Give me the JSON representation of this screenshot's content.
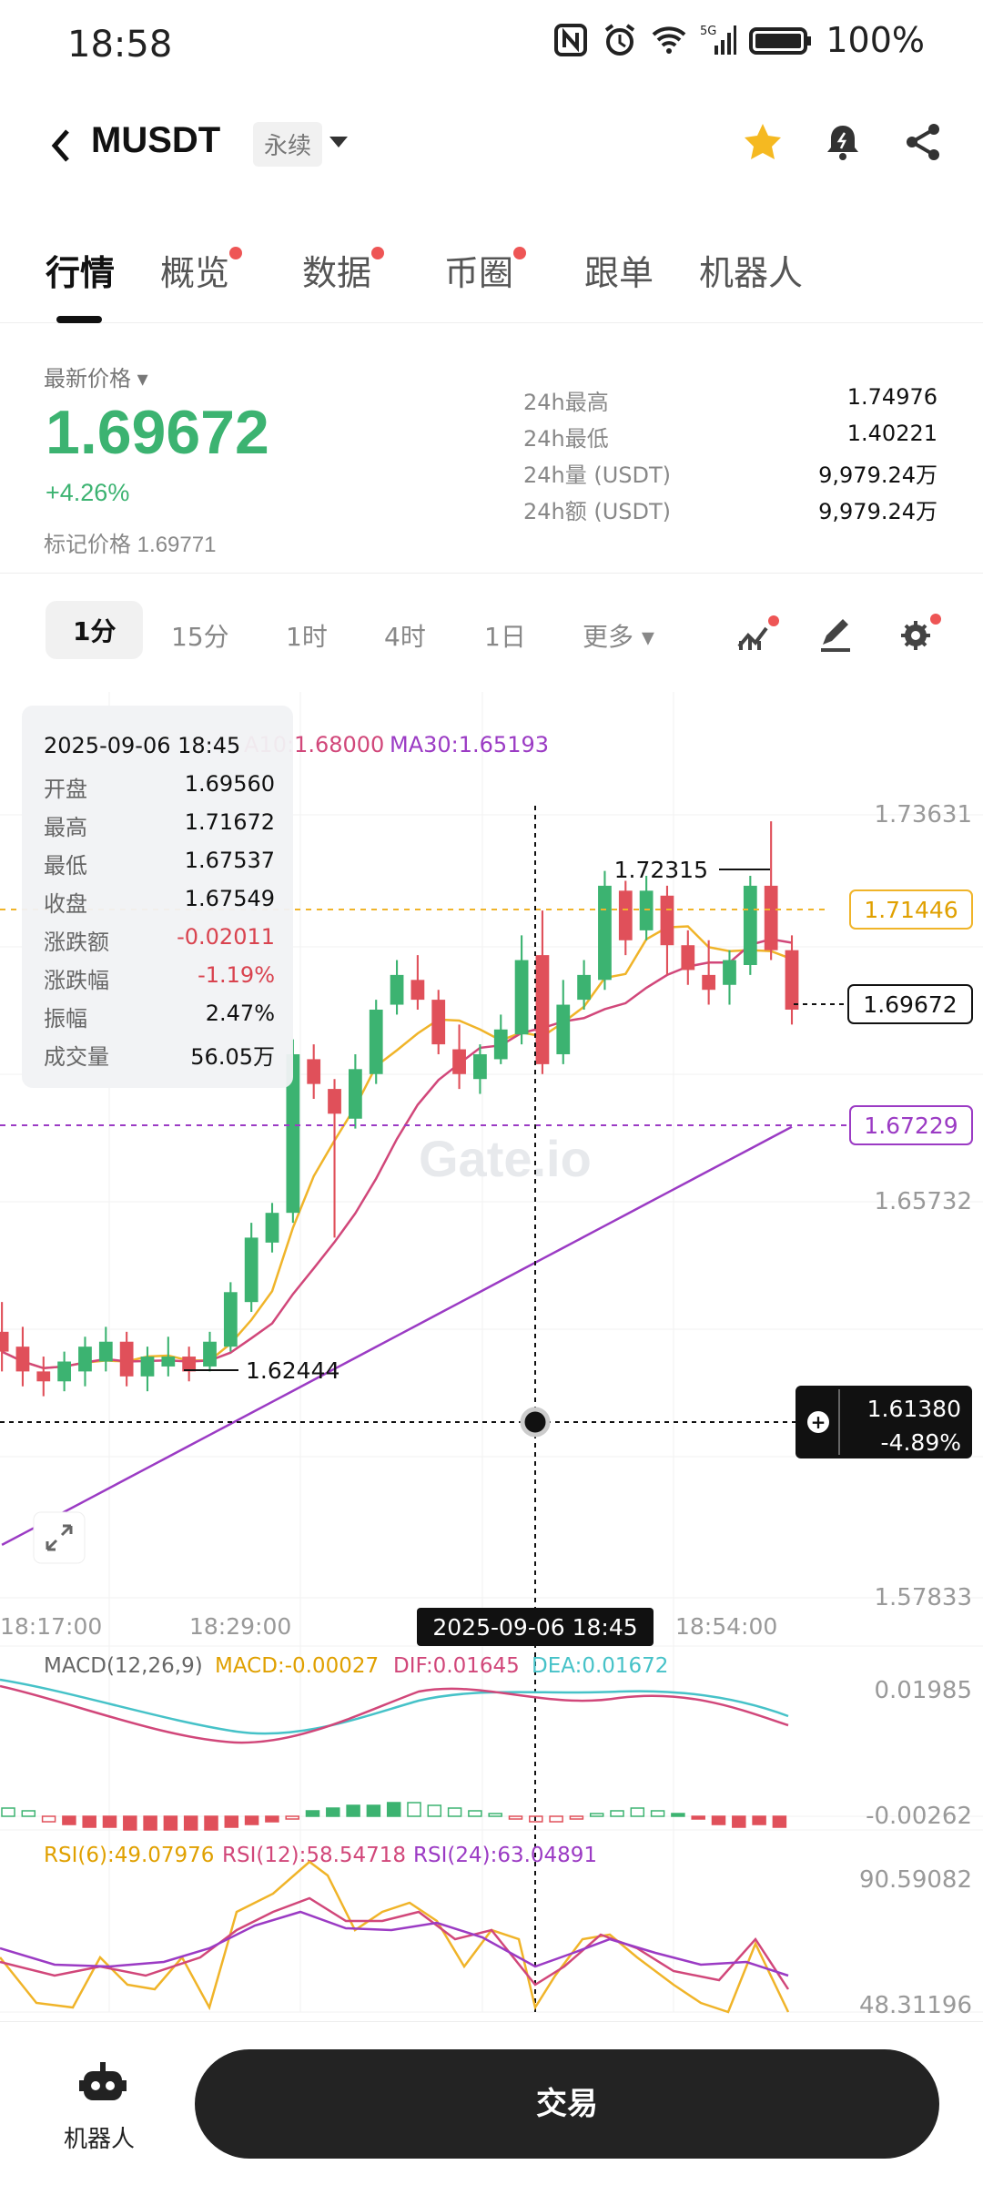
{
  "status": {
    "time": "18:58",
    "battery": "100%",
    "network": "5G"
  },
  "header": {
    "symbol": "MUSDT",
    "badge": "永续"
  },
  "tabs": [
    {
      "label": "行情",
      "dot": false
    },
    {
      "label": "概览",
      "dot": true
    },
    {
      "label": "数据",
      "dot": true
    },
    {
      "label": "币圈",
      "dot": true
    },
    {
      "label": "跟单",
      "dot": false
    },
    {
      "label": "机器人",
      "dot": false
    }
  ],
  "price": {
    "label": "最新价格",
    "last": "1.69672",
    "change": "+4.26%",
    "mark_label": "标记价格",
    "mark_value": "1.69771",
    "colors": {
      "up": "#3cb371",
      "down": "#e0505a"
    }
  },
  "stats": [
    {
      "label": "24h最高",
      "value": "1.74976"
    },
    {
      "label": "24h最低",
      "value": "1.40221"
    },
    {
      "label": "24h量 (USDT)",
      "value": "9,979.24万"
    },
    {
      "label": "24h额 (USDT)",
      "value": "9,979.24万"
    }
  ],
  "intervals": {
    "items": [
      "1分",
      "15分",
      "1时",
      "4时",
      "1日"
    ],
    "more": "更多"
  },
  "chart_data": {
    "type": "candlestick",
    "ma_legend": {
      "ma10": "A10:1.68000",
      "ma30": "MA30:1.65193"
    },
    "ylim": [
      1.57833,
      1.73631
    ],
    "yticks": [
      "1.73631",
      "1.65732",
      "1.57833"
    ],
    "xticks": [
      "18:17:00",
      "18:29:00",
      "18:54:00"
    ],
    "crosshair_time": "2025-09-06 18:45",
    "high_label": "1.72315",
    "low_label": "1.62444",
    "price_tags": {
      "yellow": "1.71446",
      "current": "1.69672",
      "purple": "1.67229",
      "cross_price": "1.61380",
      "cross_pct": "-4.89%"
    },
    "candles": [
      [
        1.632,
        1.628,
        1.638,
        1.624
      ],
      [
        1.629,
        1.624,
        1.633,
        1.621
      ],
      [
        1.624,
        1.622,
        1.627,
        1.619
      ],
      [
        1.622,
        1.626,
        1.628,
        1.62
      ],
      [
        1.624,
        1.629,
        1.631,
        1.621
      ],
      [
        1.626,
        1.63,
        1.633,
        1.624
      ],
      [
        1.63,
        1.623,
        1.632,
        1.621
      ],
      [
        1.623,
        1.627,
        1.629,
        1.62
      ],
      [
        1.625,
        1.627,
        1.631,
        1.623
      ],
      [
        1.627,
        1.624,
        1.629,
        1.622
      ],
      [
        1.625,
        1.63,
        1.632,
        1.624
      ],
      [
        1.629,
        1.64,
        1.642,
        1.628
      ],
      [
        1.638,
        1.651,
        1.654,
        1.636
      ],
      [
        1.65,
        1.656,
        1.658,
        1.648
      ],
      [
        1.656,
        1.688,
        1.691,
        1.654
      ],
      [
        1.687,
        1.682,
        1.69,
        1.679
      ],
      [
        1.681,
        1.676,
        1.683,
        1.651
      ],
      [
        1.675,
        1.685,
        1.688,
        1.673
      ],
      [
        1.684,
        1.697,
        1.699,
        1.682
      ],
      [
        1.698,
        1.704,
        1.707,
        1.696
      ],
      [
        1.703,
        1.699,
        1.708,
        1.697
      ],
      [
        1.699,
        1.69,
        1.701,
        1.688
      ],
      [
        1.689,
        1.684,
        1.694,
        1.681
      ],
      [
        1.683,
        1.688,
        1.69,
        1.68
      ],
      [
        1.687,
        1.693,
        1.696,
        1.686
      ],
      [
        1.692,
        1.707,
        1.712,
        1.69
      ],
      [
        1.708,
        1.686,
        1.717,
        1.684
      ],
      [
        1.688,
        1.698,
        1.703,
        1.686
      ],
      [
        1.699,
        1.704,
        1.707,
        1.697
      ],
      [
        1.703,
        1.722,
        1.725,
        1.701
      ],
      [
        1.721,
        1.711,
        1.723,
        1.708
      ],
      [
        1.713,
        1.721,
        1.724,
        1.711
      ],
      [
        1.72,
        1.71,
        1.722,
        1.704
      ],
      [
        1.71,
        1.705,
        1.713,
        1.702
      ],
      [
        1.704,
        1.701,
        1.711,
        1.698
      ],
      [
        1.702,
        1.707,
        1.709,
        1.698
      ],
      [
        1.706,
        1.722,
        1.724,
        1.704
      ],
      [
        1.722,
        1.709,
        1.735,
        1.707
      ],
      [
        1.709,
        1.697,
        1.712,
        1.694
      ]
    ],
    "macd": {
      "label": "MACD(12,26,9)",
      "macd": "MACD:-0.00027",
      "dif": "DIF:0.01645",
      "dea": "DEA:0.01672",
      "ticks": [
        "0.01985",
        "-0.00262"
      ]
    },
    "rsi": {
      "rsi6": "RSI(6):49.07976",
      "rsi12": "RSI(12):58.54718",
      "rsi24": "RSI(24):63.04891",
      "ticks": [
        "90.59082",
        "48.31196"
      ]
    }
  },
  "tooltip": {
    "date": "2025-09-06 18:45",
    "rows": [
      {
        "k": "开盘",
        "v": "1.69560",
        "c": "#111"
      },
      {
        "k": "最高",
        "v": "1.71672",
        "c": "#111"
      },
      {
        "k": "最低",
        "v": "1.67537",
        "c": "#111"
      },
      {
        "k": "收盘",
        "v": "1.67549",
        "c": "#111"
      },
      {
        "k": "涨跌额",
        "v": "-0.02011",
        "c": "#d9434f"
      },
      {
        "k": "涨跌幅",
        "v": "-1.19%",
        "c": "#d9434f"
      },
      {
        "k": "振幅",
        "v": "2.47%",
        "c": "#111"
      },
      {
        "k": "成交量",
        "v": "56.05万",
        "c": "#111"
      }
    ]
  },
  "bottom": {
    "robot_label": "机器人",
    "trade_label": "交易"
  }
}
